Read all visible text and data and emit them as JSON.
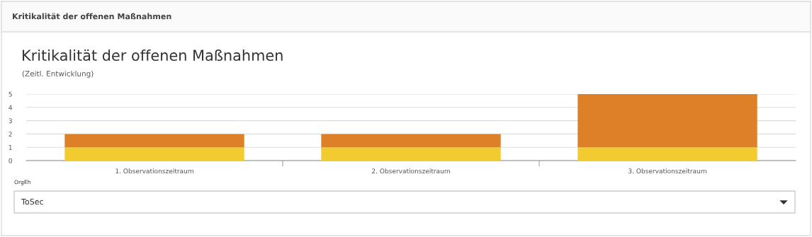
{
  "chart_data": {
    "type": "bar",
    "title": "Kritikalität der offenen Maßnahmen",
    "subtitle": "(Zeitl. Entwicklung)",
    "categories": [
      "1. Observationszeitraum",
      "2. Observationszeitraum",
      "3. Observationszeitraum"
    ],
    "stacked": true,
    "series": [
      {
        "color": "#f2cb2e",
        "values": [
          1,
          1,
          1
        ]
      },
      {
        "color": "#de8027",
        "values": [
          1,
          1,
          4
        ]
      }
    ],
    "ylim": [
      0,
      5
    ],
    "yticks": [
      0,
      1,
      2,
      3,
      4,
      5
    ],
    "grid": "y",
    "legend": false,
    "annotations": [
      "Kritikalität der offenen Maßnahmen",
      "OrgEh",
      "ToSec"
    ]
  }
}
